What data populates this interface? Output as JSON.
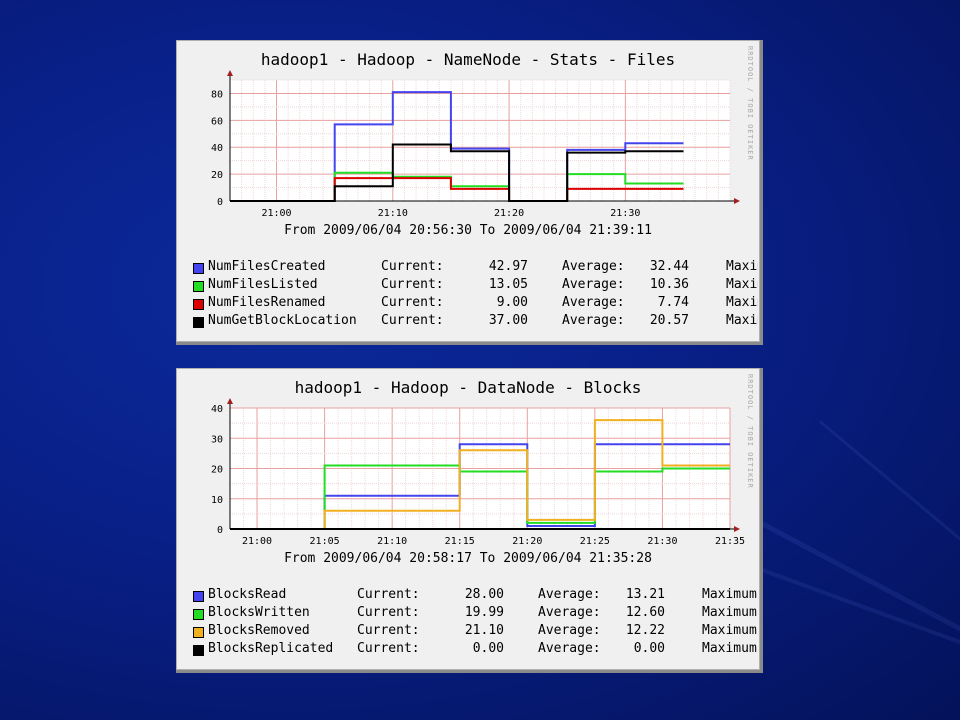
{
  "chart_data": [
    {
      "type": "line",
      "title": "hadoop1 - Hadoop - NameNode - Stats - Files",
      "watermark": "RRDTOOL / TOBI OETIKER",
      "time_range": "From 2009/06/04 20:56:30 To 2009/06/04 21:39:11",
      "x_ticks": [
        "21:00",
        "21:10",
        "21:20",
        "21:30"
      ],
      "y_ticks": [
        "0",
        "20",
        "40",
        "60",
        "80"
      ],
      "ylim": [
        0,
        90
      ],
      "xlim_minutes": [
        -4,
        39
      ],
      "x_tick_minutes": [
        0,
        10,
        20,
        30
      ],
      "y_tick_values": [
        0,
        20,
        40,
        60,
        80
      ],
      "grid": true,
      "series": [
        {
          "name": "NumFilesCreated",
          "color": "#4444ee",
          "x": [
            -4,
            5,
            5,
            10,
            10,
            15,
            15,
            20,
            20,
            25,
            25,
            30,
            30,
            35
          ],
          "y": [
            0,
            0,
            57,
            57,
            81,
            81,
            39,
            39,
            0,
            0,
            38,
            38,
            43,
            43
          ],
          "current": "42.97",
          "average": "32.44",
          "maximum": "Maximum"
        },
        {
          "name": "NumFilesListed",
          "color": "#22dd22",
          "x": [
            -4,
            5,
            5,
            10,
            10,
            15,
            15,
            20,
            20,
            25,
            25,
            30,
            30,
            35
          ],
          "y": [
            0,
            0,
            21,
            21,
            18,
            18,
            11,
            11,
            0,
            0,
            20,
            20,
            13,
            13
          ],
          "current": "13.05",
          "average": "10.36",
          "maximum": "Maximum"
        },
        {
          "name": "NumFilesRenamed",
          "color": "#dd0000",
          "x": [
            -4,
            5,
            5,
            10,
            10,
            15,
            15,
            20,
            20,
            25,
            25,
            30,
            30,
            35
          ],
          "y": [
            0,
            0,
            17,
            17,
            17,
            17,
            9,
            9,
            0,
            0,
            9,
            9,
            9,
            9
          ],
          "current": "9.00",
          "average": "7.74",
          "maximum": "Maximum"
        },
        {
          "name": "NumGetBlockLocation",
          "color": "#000000",
          "x": [
            -4,
            5,
            5,
            10,
            10,
            15,
            15,
            20,
            20,
            25,
            25,
            30,
            30,
            35
          ],
          "y": [
            0,
            0,
            11,
            11,
            42,
            42,
            37,
            37,
            0,
            0,
            36,
            36,
            37,
            37
          ],
          "current": "37.00",
          "average": "20.57",
          "maximum": "Maximum"
        }
      ],
      "legend_labels": {
        "current": "Current:",
        "average": "Average:"
      }
    },
    {
      "type": "line",
      "title": "hadoop1 - Hadoop - DataNode - Blocks",
      "watermark": "RRDTOOL / TOBI OETIKER",
      "time_range": "From 2009/06/04 20:58:17 To 2009/06/04 21:35:28",
      "x_ticks": [
        "21:00",
        "21:05",
        "21:10",
        "21:15",
        "21:20",
        "21:25",
        "21:30",
        "21:35"
      ],
      "y_ticks": [
        "0",
        "10",
        "20",
        "30",
        "40"
      ],
      "ylim": [
        0,
        40
      ],
      "xlim_minutes": [
        -2,
        35
      ],
      "x_tick_minutes": [
        0,
        5,
        10,
        15,
        20,
        25,
        30,
        35
      ],
      "y_tick_values": [
        0,
        10,
        20,
        30,
        40
      ],
      "grid": true,
      "series": [
        {
          "name": "BlocksRead",
          "color": "#4444ee",
          "x": [
            -2,
            5,
            5,
            10,
            10,
            15,
            15,
            20,
            20,
            25,
            25,
            30,
            30,
            35
          ],
          "y": [
            0,
            0,
            11,
            11,
            11,
            11,
            28,
            28,
            1,
            1,
            28,
            28,
            28,
            28
          ],
          "current": "28.00",
          "average": "13.21",
          "maximum": "Maximum:"
        },
        {
          "name": "BlocksWritten",
          "color": "#22dd22",
          "x": [
            -2,
            5,
            5,
            10,
            10,
            15,
            15,
            20,
            20,
            25,
            25,
            30,
            30,
            35
          ],
          "y": [
            0,
            0,
            21,
            21,
            21,
            21,
            19,
            19,
            2,
            2,
            19,
            19,
            20,
            20
          ],
          "current": "19.99",
          "average": "12.60",
          "maximum": "Maximum:"
        },
        {
          "name": "BlocksRemoved",
          "color": "#f0b020",
          "x": [
            -2,
            5,
            5,
            10,
            10,
            15,
            15,
            20,
            20,
            25,
            25,
            30,
            30,
            35
          ],
          "y": [
            0,
            0,
            6,
            6,
            6,
            6,
            26,
            26,
            3,
            3,
            36,
            36,
            21,
            21
          ],
          "current": "21.10",
          "average": "12.22",
          "maximum": "Maximum:"
        },
        {
          "name": "BlocksReplicated",
          "color": "#000000",
          "x": [
            -2,
            35
          ],
          "y": [
            0,
            0
          ],
          "current": "0.00",
          "average": "0.00",
          "maximum": "Maximum:"
        }
      ],
      "legend_labels": {
        "current": "Current:",
        "average": "Average:"
      }
    }
  ]
}
